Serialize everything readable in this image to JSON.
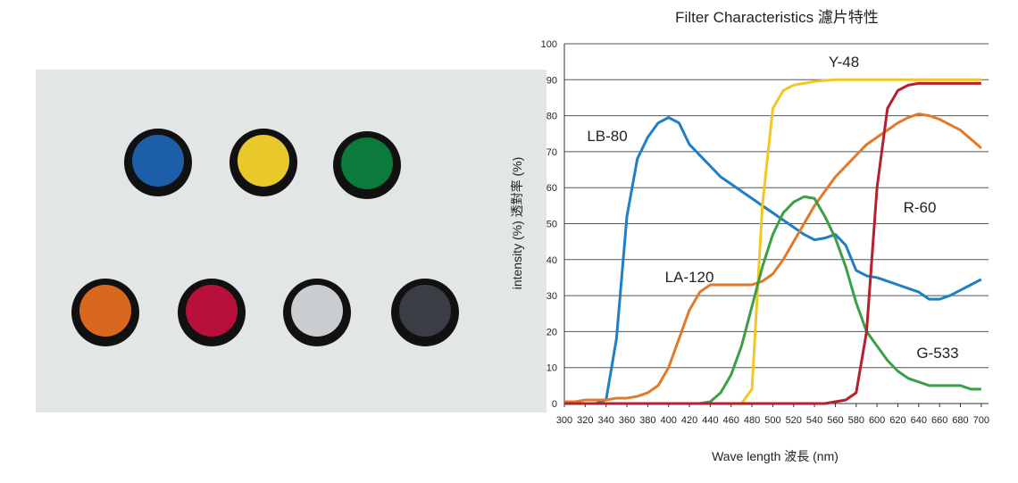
{
  "chart_data": {
    "type": "line",
    "title": "Filter Characteristics 濾片特性",
    "x_label": "Wave length 波長 (nm)",
    "y_label": "intensity (%) 透對率 (%)",
    "x": [
      300,
      310,
      320,
      330,
      340,
      350,
      360,
      370,
      380,
      390,
      400,
      410,
      420,
      430,
      440,
      450,
      460,
      470,
      480,
      490,
      500,
      510,
      520,
      530,
      540,
      550,
      560,
      570,
      580,
      590,
      600,
      610,
      620,
      630,
      640,
      650,
      660,
      670,
      680,
      690,
      700
    ],
    "xlim": [
      300,
      707
    ],
    "ylim": [
      0,
      100
    ],
    "xticks": [
      300,
      320,
      340,
      360,
      380,
      400,
      420,
      440,
      460,
      480,
      500,
      520,
      540,
      560,
      580,
      600,
      620,
      640,
      660,
      680,
      700
    ],
    "yticks": [
      0,
      10,
      20,
      30,
      40,
      50,
      60,
      70,
      80,
      90,
      100
    ],
    "grid": true,
    "series": [
      {
        "name": "LB-80",
        "color": "#1f7fc4",
        "values": [
          0,
          0,
          0,
          0,
          1,
          18,
          52,
          68,
          74,
          78,
          79.5,
          78,
          72,
          69,
          66,
          63,
          61,
          59,
          57,
          55,
          53,
          51,
          49,
          47,
          45.5,
          46,
          47,
          44,
          37,
          35.5,
          35,
          34,
          33,
          32,
          31,
          29,
          29,
          30,
          31.5,
          33,
          34.5
        ]
      },
      {
        "name": "Y-48",
        "color": "#f2c623",
        "values": [
          0,
          0,
          0,
          0,
          0,
          0,
          0,
          0,
          0,
          0,
          0,
          0,
          0,
          0,
          0,
          0,
          0,
          0,
          4,
          55,
          82,
          87,
          88.5,
          89,
          89.5,
          89.8,
          90,
          90,
          90,
          90,
          90,
          90,
          90,
          90,
          90,
          90,
          90,
          90,
          90,
          90,
          90
        ]
      },
      {
        "name": "LA-120",
        "color": "#e07a2a",
        "values": [
          0.5,
          0.5,
          1,
          1,
          1,
          1.5,
          1.5,
          2,
          3,
          5,
          10,
          18,
          26,
          31,
          33,
          33,
          33,
          33,
          33,
          34,
          36,
          40,
          45,
          50,
          55,
          59,
          63,
          66,
          69,
          72,
          74,
          76,
          78,
          79.5,
          80.5,
          80,
          79,
          77.5,
          76,
          73.5,
          71
        ]
      },
      {
        "name": "G-533",
        "color": "#3aa047",
        "values": [
          0,
          0,
          0,
          0,
          0,
          0,
          0,
          0,
          0,
          0,
          0,
          0,
          0,
          0,
          0.5,
          3,
          8,
          16,
          27,
          38,
          47,
          53,
          56,
          57.5,
          57,
          52,
          46,
          38,
          28,
          20,
          16,
          12,
          9,
          7,
          6,
          5,
          5,
          5,
          5,
          4,
          4
        ]
      },
      {
        "name": "R-60",
        "color": "#b5202e",
        "values": [
          0,
          0,
          0,
          0,
          0,
          0,
          0,
          0,
          0,
          0,
          0,
          0,
          0,
          0,
          0,
          0,
          0,
          0,
          0,
          0,
          0,
          0,
          0,
          0,
          0,
          0,
          0.5,
          1,
          3,
          20,
          60,
          82,
          87,
          88.5,
          89,
          89,
          89,
          89,
          89,
          89,
          89
        ]
      }
    ]
  }
}
